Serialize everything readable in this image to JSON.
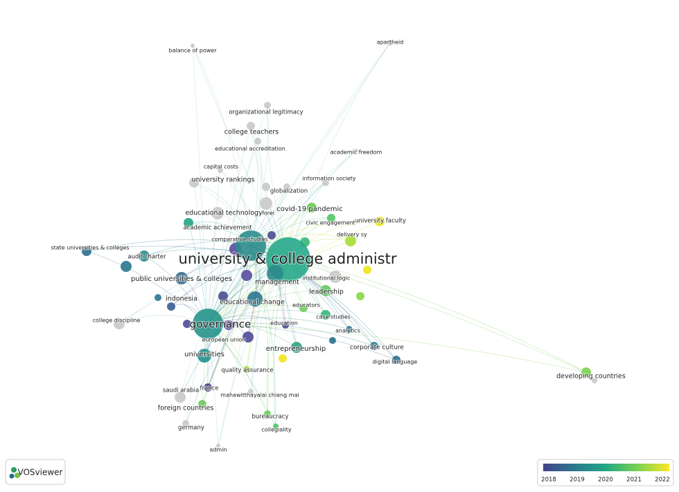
{
  "nodes": [
    {
      "label": "apartheid"
    },
    {
      "label": "balance of power"
    },
    {
      "label": "organizational legitimacy"
    },
    {
      "label": "college teachers"
    },
    {
      "label": "educational accreditation"
    },
    {
      "label": "academic freedom"
    },
    {
      "label": "capital costs"
    },
    {
      "label": "information society"
    },
    {
      "label": "university rankings"
    },
    {
      "label": "globalization"
    },
    {
      "label": "covid-19 pandemic"
    },
    {
      "label": "educational technology"
    },
    {
      "label": "forei"
    },
    {
      "label": "university faculty"
    },
    {
      "label": "civic engagement"
    },
    {
      "label": "academic achievement"
    },
    {
      "label": "delivery sy"
    },
    {
      "label": "comparative studies"
    },
    {
      "label": "state universities & colleges"
    },
    {
      "label": "university & college administr"
    },
    {
      "label": "audit charter"
    },
    {
      "label": "public universities & colleges"
    },
    {
      "label": "management"
    },
    {
      "label": "institutional logic"
    },
    {
      "label": "leadership"
    },
    {
      "label": "indonesia"
    },
    {
      "label": "educational change"
    },
    {
      "label": "educators"
    },
    {
      "label": "college discipline"
    },
    {
      "label": "case studies"
    },
    {
      "label": "governance"
    },
    {
      "label": "education"
    },
    {
      "label": "analytics"
    },
    {
      "label": "european union"
    },
    {
      "label": "entrepreneurship"
    },
    {
      "label": "corporate culture"
    },
    {
      "label": "universities"
    },
    {
      "label": "digital language"
    },
    {
      "label": "quality assurance"
    },
    {
      "label": "developing countries"
    },
    {
      "label": "saudi arabia"
    },
    {
      "label": "france"
    },
    {
      "label": "mahawitthayalai chiang mai"
    },
    {
      "label": "foreign countries"
    },
    {
      "label": "bureaucracy"
    },
    {
      "label": "germany"
    },
    {
      "label": "collegiality"
    },
    {
      "label": "admin"
    }
  ],
  "logo": "VOSviewer",
  "legend": {
    "ticks": [
      2018,
      2019,
      2020,
      2021,
      2022
    ]
  }
}
